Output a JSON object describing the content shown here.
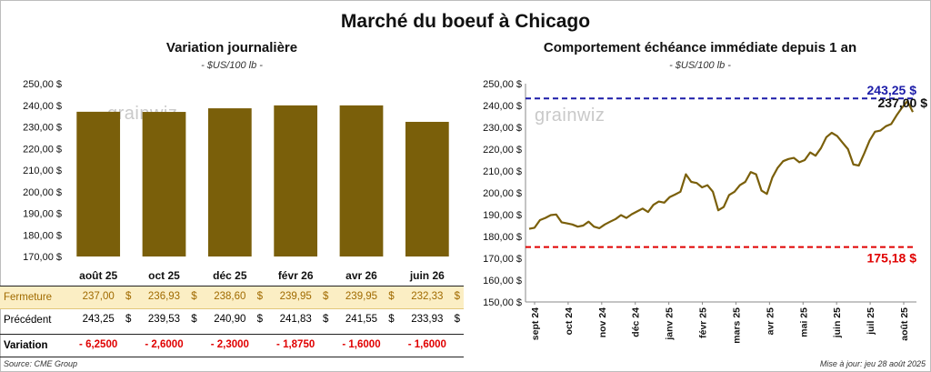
{
  "title": "Marché du boeuf à Chicago",
  "left": {
    "title": "Variation journalière",
    "subtitle": "- $US/100 lb -",
    "watermark": "grainwiz"
  },
  "right": {
    "title": "Comportement échéance immédiate depuis 1 an",
    "subtitle": "- $US/100 lb -",
    "watermark": "grainwiz"
  },
  "table": {
    "row_labels": [
      "Fermeture",
      "Précédent",
      "Variation"
    ],
    "close": [
      "237,00",
      "236,93",
      "238,60",
      "239,95",
      "239,95",
      "232,33"
    ],
    "prev": [
      "243,25",
      "239,53",
      "240,90",
      "241,83",
      "241,55",
      "233,93"
    ],
    "variation": [
      "- 6,2500",
      "- 2,6000",
      "- 2,3000",
      "- 1,8750",
      "- 1,6000",
      "- 1,6000"
    ],
    "currency": "$"
  },
  "footer": {
    "source": "Source: CME Group",
    "updated": "Mise à jour: jeu 28 août 2025"
  },
  "chart_data": [
    {
      "type": "bar",
      "categories": [
        "août 25",
        "oct 25",
        "déc 25",
        "févr 26",
        "avr 26",
        "juin 26"
      ],
      "values": [
        237.0,
        236.93,
        238.6,
        239.95,
        239.95,
        232.33
      ],
      "ylim": [
        170,
        250
      ],
      "yticks": [
        170,
        180,
        190,
        200,
        210,
        220,
        230,
        240,
        250
      ],
      "ytick_suffix": ",00 $",
      "bar_color": "#7a5f0a",
      "grid": false
    },
    {
      "type": "line",
      "x_labels": [
        "sept 24",
        "oct 24",
        "nov 24",
        "déc 24",
        "janv 25",
        "févr 25",
        "mars 25",
        "avr 25",
        "mai 25",
        "juin 25",
        "juil 25",
        "août 25"
      ],
      "ylim": [
        150,
        250
      ],
      "yticks": [
        150,
        160,
        170,
        180,
        190,
        200,
        210,
        220,
        230,
        240,
        250
      ],
      "ytick_suffix": ",00 $",
      "line_color": "#7a5f0a",
      "series": [
        {
          "values": [
            183.5,
            184.0,
            187.5,
            188.5,
            189.8,
            190.1,
            186.5,
            186.0,
            185.5,
            184.5,
            185.0,
            186.8,
            184.5,
            183.8,
            185.5,
            186.8,
            188.0,
            189.8,
            188.5,
            190.2,
            191.5,
            192.8,
            191.2,
            194.5,
            196.0,
            195.5,
            198.0,
            199.2,
            200.5,
            208.5,
            205.0,
            204.5,
            202.5,
            203.5,
            200.5,
            192.0,
            193.5,
            199.0,
            200.5,
            203.5,
            205.0,
            209.5,
            208.5,
            201.0,
            199.5,
            207.0,
            211.5,
            214.5,
            215.5,
            216.0,
            214.0,
            215.0,
            218.5,
            217.0,
            220.5,
            225.5,
            227.5,
            226.0,
            223.0,
            220.0,
            213.0,
            212.5,
            218.0,
            224.0,
            228.0,
            228.5,
            230.5,
            231.5,
            235.5,
            239.0,
            242.0,
            237.0
          ]
        }
      ],
      "reference_lines": [
        {
          "value": 243.25,
          "label": "243,25 $",
          "color": "#1c1ca8"
        },
        {
          "value": 175.18,
          "label": "175,18 $",
          "color": "#e00000"
        }
      ],
      "last_label": "237,00 $"
    }
  ]
}
